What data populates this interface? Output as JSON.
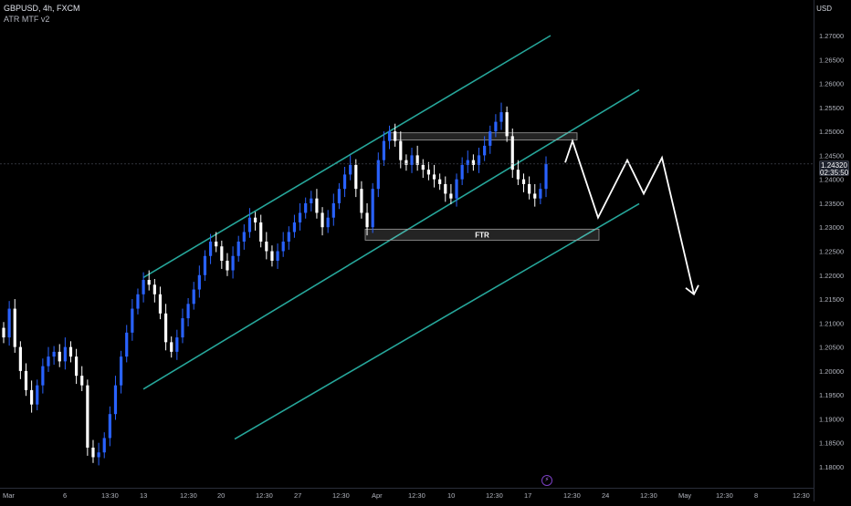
{
  "header": {
    "symbol": "GBPUSD, 4h, FXCM",
    "indicator": "ATR MTF v2"
  },
  "price_axis": {
    "currency": "USD",
    "labels": [
      "1.27000",
      "1.26500",
      "1.26000",
      "1.25500",
      "1.25000",
      "1.24500",
      "1.24000",
      "1.23500",
      "1.23000",
      "1.22500",
      "1.22000",
      "1.21500",
      "1.21000",
      "1.20500",
      "1.20000",
      "1.19500",
      "1.19000",
      "1.18500",
      "1.18000"
    ],
    "current_price": "1.24320",
    "countdown": "02:35:50"
  },
  "time_axis": {
    "labels": [
      "Mar",
      "6",
      "13:30",
      "13",
      "12:30",
      "20",
      "12:30",
      "27",
      "12:30",
      "Apr",
      "12:30",
      "10",
      "12:30",
      "17",
      "12:30",
      "24",
      "12:30",
      "May",
      "12:30",
      "8",
      "12:30"
    ]
  },
  "annotations": {
    "ftr_label": "FTR"
  },
  "colors": {
    "bull_candle": "#2962ff",
    "bear_candle": "#ffffff",
    "channel_line": "#26a69a",
    "projection": "#ffffff",
    "zone_border": "#9e9e9e"
  },
  "chart_data": {
    "type": "candlestick",
    "title": "GBPUSD, 4h, FXCM",
    "ylim": [
      1.178,
      1.2735
    ],
    "close_series": [
      1.207,
      1.213,
      1.205,
      1.2,
      1.196,
      1.193,
      1.197,
      1.201,
      1.203,
      1.204,
      1.202,
      1.205,
      1.203,
      1.199,
      1.197,
      1.184,
      1.182,
      1.183,
      1.186,
      1.191,
      1.197,
      1.203,
      1.208,
      1.213,
      1.216,
      1.219,
      1.218,
      1.216,
      1.212,
      1.206,
      1.204,
      1.207,
      1.211,
      1.214,
      1.217,
      1.22,
      1.224,
      1.227,
      1.226,
      1.223,
      1.221,
      1.224,
      1.227,
      1.229,
      1.232,
      1.231,
      1.227,
      1.225,
      1.223,
      1.225,
      1.227,
      1.229,
      1.231,
      1.233,
      1.235,
      1.236,
      1.233,
      1.23,
      1.232,
      1.235,
      1.238,
      1.241,
      1.243,
      1.238,
      1.233,
      1.23,
      1.238,
      1.244,
      1.248,
      1.25,
      1.248,
      1.244,
      1.243,
      1.245,
      1.243,
      1.242,
      1.241,
      1.24,
      1.239,
      1.237,
      1.236,
      1.24,
      1.243,
      1.244,
      1.243,
      1.245,
      1.247,
      1.25,
      1.252,
      1.254,
      1.249,
      1.242,
      1.24,
      1.239,
      1.237,
      1.236,
      1.238,
      1.2432
    ],
    "price_labels": [
      "1.27000",
      "1.26500",
      "1.26000",
      "1.25500",
      "1.25000",
      "1.24500",
      "1.24000",
      "1.23500",
      "1.23000",
      "1.22500",
      "1.22000",
      "1.21500",
      "1.21000",
      "1.20500",
      "1.20000",
      "1.19500",
      "1.19000",
      "1.18500",
      "1.18000"
    ],
    "time_labels": [
      "Mar",
      "6",
      "13:30",
      "13",
      "12:30",
      "20",
      "12:30",
      "27",
      "12:30",
      "Apr",
      "12:30",
      "10",
      "12:30",
      "17",
      "12:30",
      "24",
      "12:30",
      "May",
      "12:30",
      "8",
      "12:30"
    ],
    "zones": [
      {
        "label": "",
        "low": 1.2482,
        "high": 1.2497
      },
      {
        "label": "FTR",
        "low": 1.2273,
        "high": 1.2296
      }
    ],
    "channel": [
      {
        "name": "upper",
        "from": 1.2195,
        "to": 1.27
      },
      {
        "name": "middle",
        "from": 1.1962,
        "to": 1.2587
      },
      {
        "name": "lower",
        "from": 1.1858,
        "to": 1.2349
      }
    ],
    "projection_path": [
      1.2435,
      1.248,
      1.232,
      1.244,
      1.237,
      1.2445,
      1.216
    ],
    "grid": false
  }
}
